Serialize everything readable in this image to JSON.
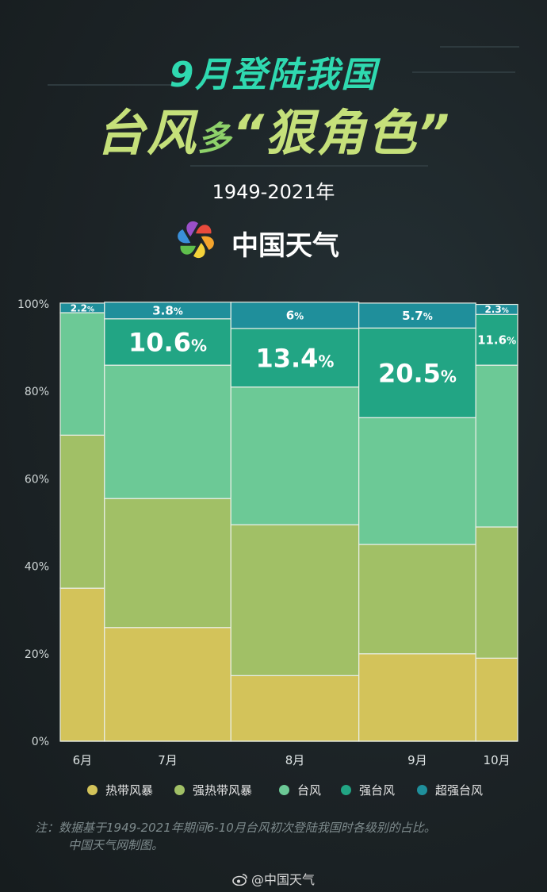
{
  "header": {
    "title_line1": "9月登陆我国",
    "title_line2_part1": "台风",
    "title_line2_part2": "多",
    "title_line2_part3": "“狠角色”",
    "subtitle": "1949-2021年",
    "brand": "中国天气"
  },
  "chart_data": {
    "type": "bar",
    "stacked": true,
    "variable_width": true,
    "categories": [
      "6月",
      "7月",
      "8月",
      "9月",
      "10月"
    ],
    "widths": [
      56,
      160,
      162,
      148,
      53
    ],
    "ylim": [
      0,
      100
    ],
    "yticks": [
      "0%",
      "20%",
      "40%",
      "60%",
      "80%",
      "100%"
    ],
    "series": [
      {
        "name": "热带风暴",
        "color": "#d3c35a",
        "values": [
          35,
          26,
          15,
          20,
          19
        ]
      },
      {
        "name": "强热带风暴",
        "color": "#a1c066",
        "values": [
          35,
          29.5,
          34.5,
          25,
          30
        ]
      },
      {
        "name": "台风",
        "color": "#6cc996",
        "values": [
          28,
          30.5,
          31.5,
          29,
          37
        ]
      },
      {
        "name": "强台风",
        "color": "#22a584",
        "values": [
          0,
          10.6,
          13.4,
          20.5,
          11.6
        ]
      },
      {
        "name": "超强台风",
        "color": "#1f8f9b",
        "values": [
          2.2,
          3.8,
          6,
          5.7,
          2.3
        ]
      }
    ],
    "data_labels": [
      {
        "category": "6月",
        "series": "超强台风",
        "value": "2.2",
        "unit": "%"
      },
      {
        "category": "7月",
        "series": "超强台风",
        "value": "3.8",
        "unit": "%"
      },
      {
        "category": "7月",
        "series": "强台风",
        "value": "10.6",
        "unit": "%"
      },
      {
        "category": "8月",
        "series": "超强台风",
        "value": "6",
        "unit": "%"
      },
      {
        "category": "8月",
        "series": "强台风",
        "value": "13.4",
        "unit": "%"
      },
      {
        "category": "9月",
        "series": "超强台风",
        "value": "5.7",
        "unit": "%"
      },
      {
        "category": "9月",
        "series": "强台风",
        "value": "20.5",
        "unit": "%"
      },
      {
        "category": "10月",
        "series": "超强台风",
        "value": "2.3",
        "unit": "%"
      },
      {
        "category": "10月",
        "series": "强台风",
        "value": "11.6",
        "unit": "%"
      }
    ],
    "legend_position": "bottom",
    "grid": false
  },
  "footnote": {
    "line1": "注：数据基于1949-2021年期间6-10月台风初次登陆我国时各级别的占比。",
    "line2": "中国天气网制图。"
  },
  "weibo": {
    "handle": "@中国天气"
  }
}
